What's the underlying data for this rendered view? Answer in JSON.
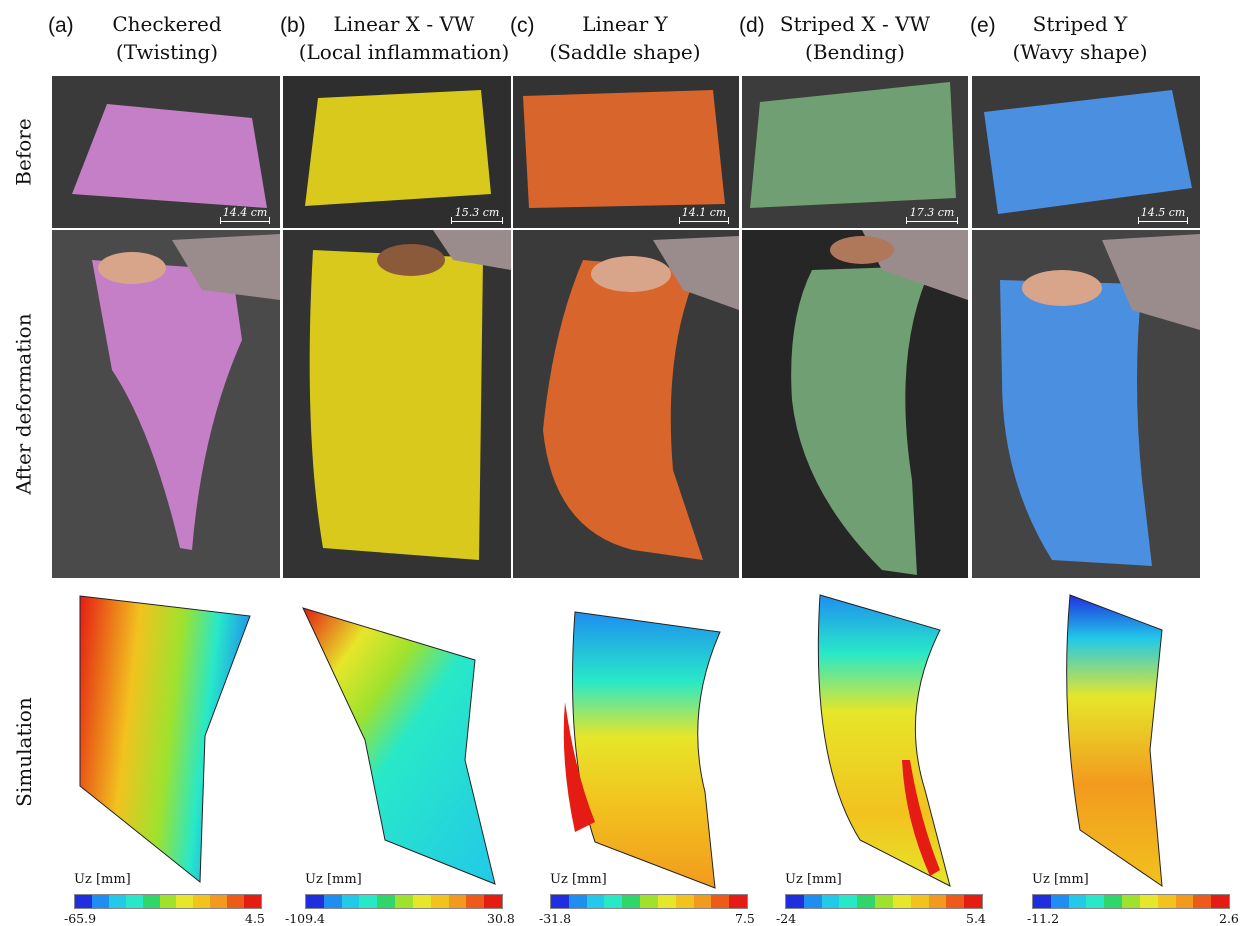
{
  "columns": [
    {
      "letter": "(a)",
      "title1": "Checkered",
      "title2": "(Twisting)",
      "scale": "14.4 cm",
      "uz": "Uz [mm]",
      "min": "-65.9",
      "max": "4.5"
    },
    {
      "letter": "(b)",
      "title1": "Linear X - VW",
      "title2": "(Local inflammation)",
      "scale": "15.3 cm",
      "uz": "Uz [mm]",
      "min": "-109.4",
      "max": "30.8"
    },
    {
      "letter": "(c)",
      "title1": "Linear Y",
      "title2": "(Saddle shape)",
      "scale": "14.1 cm",
      "uz": "Uz [mm]",
      "min": "-31.8",
      "max": "7.5"
    },
    {
      "letter": "(d)",
      "title1": "Striped X - VW",
      "title2": "(Bending)",
      "scale": "17.3 cm",
      "uz": "Uz [mm]",
      "min": "-24",
      "max": "5.4"
    },
    {
      "letter": "(e)",
      "title1": "Striped Y",
      "title2": "(Wavy shape)",
      "scale": "14.5 cm",
      "uz": "Uz [mm]",
      "min": "-11.2",
      "max": "2.6"
    }
  ],
  "rows": {
    "before": "Before",
    "after": "After deformation",
    "simulation": "Simulation"
  },
  "colors": {
    "paper": [
      "#c57fc6",
      "#d8c91c",
      "#d8652b",
      "#6f9f72",
      "#4b8fe0"
    ],
    "colormap": [
      "#1f2fe0",
      "#1e8ef0",
      "#22c9e8",
      "#28e8c8",
      "#2fd66a",
      "#9ee22e",
      "#e6e62a",
      "#f2c21e",
      "#f29a1e",
      "#ee5a18",
      "#e41c14"
    ]
  }
}
